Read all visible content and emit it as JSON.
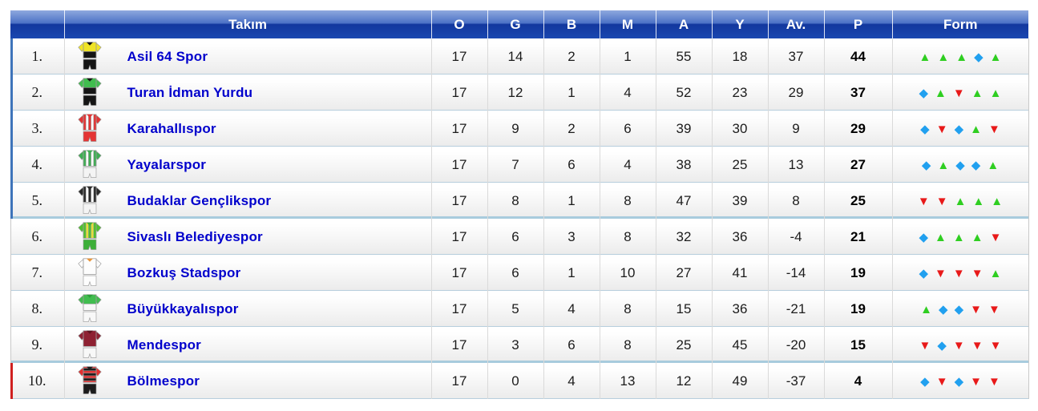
{
  "table": {
    "columns": [
      {
        "key": "rank",
        "label": ""
      },
      {
        "key": "team",
        "label": "Takım"
      },
      {
        "key": "o",
        "label": "O"
      },
      {
        "key": "g",
        "label": "G"
      },
      {
        "key": "b",
        "label": "B"
      },
      {
        "key": "m",
        "label": "M"
      },
      {
        "key": "a",
        "label": "A"
      },
      {
        "key": "y",
        "label": "Y"
      },
      {
        "key": "av",
        "label": "Av."
      },
      {
        "key": "p",
        "label": "P"
      },
      {
        "key": "form",
        "label": "Form"
      }
    ],
    "rows": [
      {
        "rank": "1.",
        "team": "Asil 64 Spor",
        "o": 17,
        "g": 14,
        "b": 2,
        "m": 1,
        "a": 55,
        "y": 18,
        "av": 37,
        "p": 44,
        "form": [
          "W",
          "W",
          "W",
          "D",
          "W"
        ],
        "zone": "promotion",
        "separator": "normal",
        "jersey": {
          "icon_name": "team-jersey-icon",
          "pattern": "half",
          "c1": "#f0e427",
          "c2": "#151515",
          "shorts": "#151515",
          "collar": "#151515"
        }
      },
      {
        "rank": "2.",
        "team": "Turan İdman Yurdu",
        "o": 17,
        "g": 12,
        "b": 1,
        "m": 4,
        "a": 52,
        "y": 23,
        "av": 29,
        "p": 37,
        "form": [
          "D",
          "W",
          "L",
          "W",
          "W"
        ],
        "zone": "promotion",
        "separator": "normal",
        "jersey": {
          "icon_name": "team-jersey-icon",
          "pattern": "half",
          "c1": "#41bd4f",
          "c2": "#151515",
          "shorts": "#151515",
          "collar": "#151515"
        }
      },
      {
        "rank": "3.",
        "team": "Karahallıspor",
        "o": 17,
        "g": 9,
        "b": 2,
        "m": 6,
        "a": 39,
        "y": 30,
        "av": 9,
        "p": 29,
        "form": [
          "D",
          "L",
          "D",
          "W",
          "L"
        ],
        "zone": "promotion",
        "separator": "normal",
        "jersey": {
          "icon_name": "team-jersey-icon",
          "pattern": "stripes",
          "c1": "#e43434",
          "c2": "#ffffff",
          "shorts": "#e43434",
          "collar": "#e43434"
        }
      },
      {
        "rank": "4.",
        "team": "Yayalarspor",
        "o": 17,
        "g": 7,
        "b": 6,
        "m": 4,
        "a": 38,
        "y": 25,
        "av": 13,
        "p": 27,
        "form": [
          "D",
          "W",
          "D",
          "D",
          "W"
        ],
        "zone": "promotion",
        "separator": "normal",
        "jersey": {
          "icon_name": "team-jersey-icon",
          "pattern": "stripes",
          "c1": "#3fae53",
          "c2": "#ffffff",
          "shorts": "#f4f4f4",
          "collar": "#3fae53"
        }
      },
      {
        "rank": "5.",
        "team": "Budaklar Gençlikspor",
        "o": 17,
        "g": 8,
        "b": 1,
        "m": 8,
        "a": 47,
        "y": 39,
        "av": 8,
        "p": 25,
        "form": [
          "L",
          "L",
          "W",
          "W",
          "W"
        ],
        "zone": "promotion",
        "separator": "strong",
        "jersey": {
          "icon_name": "team-jersey-icon",
          "pattern": "stripes",
          "c1": "#2a2a2a",
          "c2": "#ffffff",
          "shorts": "#f4f4f4",
          "collar": "#2a2a2a"
        }
      },
      {
        "rank": "6.",
        "team": "Sivaslı Belediyespor",
        "o": 17,
        "g": 6,
        "b": 3,
        "m": 8,
        "a": 32,
        "y": 36,
        "av": -4,
        "p": 21,
        "form": [
          "D",
          "W",
          "W",
          "W",
          "L"
        ],
        "zone": null,
        "separator": "normal",
        "jersey": {
          "icon_name": "team-jersey-icon",
          "pattern": "stripes",
          "c1": "#4fc12e",
          "c2": "#e6e03a",
          "shorts": "#3daf38",
          "collar": "#3daf38"
        }
      },
      {
        "rank": "7.",
        "team": "Bozkuş Stadspor",
        "o": 17,
        "g": 6,
        "b": 1,
        "m": 10,
        "a": 27,
        "y": 41,
        "av": -14,
        "p": 19,
        "form": [
          "D",
          "L",
          "L",
          "L",
          "W"
        ],
        "zone": null,
        "separator": "normal",
        "jersey": {
          "icon_name": "team-jersey-icon",
          "pattern": "solid",
          "c1": "#fdfdfd",
          "c2": "#fdfdfd",
          "shorts": "#fdfdfd",
          "collar": "#e8953a"
        }
      },
      {
        "rank": "8.",
        "team": "Büyükkayalıspor",
        "o": 17,
        "g": 5,
        "b": 4,
        "m": 8,
        "a": 15,
        "y": 36,
        "av": -21,
        "p": 19,
        "form": [
          "W",
          "D",
          "D",
          "L",
          "L"
        ],
        "zone": null,
        "separator": "normal",
        "jersey": {
          "icon_name": "team-jersey-icon",
          "pattern": "half",
          "c1": "#41bd4f",
          "c2": "#f8f8f8",
          "shorts": "#f8f8f8",
          "collar": "#2e9e3c"
        }
      },
      {
        "rank": "9.",
        "team": "Mendespor",
        "o": 17,
        "g": 3,
        "b": 6,
        "m": 8,
        "a": 25,
        "y": 45,
        "av": -20,
        "p": 15,
        "form": [
          "L",
          "D",
          "L",
          "L",
          "L"
        ],
        "zone": null,
        "separator": "strong",
        "jersey": {
          "icon_name": "team-jersey-icon",
          "pattern": "solid",
          "c1": "#8e2132",
          "c2": "#8e2132",
          "shorts": "#f8f8f8",
          "collar": "#5e1520"
        }
      },
      {
        "rank": "10.",
        "team": "Bölmespor",
        "o": 17,
        "g": 0,
        "b": 4,
        "m": 13,
        "a": 12,
        "y": 49,
        "av": -37,
        "p": 4,
        "form": [
          "D",
          "L",
          "D",
          "L",
          "L"
        ],
        "zone": "relegation",
        "separator": "normal",
        "jersey": {
          "icon_name": "team-jersey-icon",
          "pattern": "hoops",
          "c1": "#e23131",
          "c2": "#1c1c1c",
          "shorts": "#1c1c1c",
          "collar": "#1c1c1c"
        }
      }
    ],
    "form_legend": {
      "W": {
        "glyph": "▲",
        "color": "#2fce21",
        "icon_name": "form-win-icon"
      },
      "D": {
        "glyph": "◆",
        "color": "#21a0ef",
        "icon_name": "form-draw-icon"
      },
      "L": {
        "glyph": "▼",
        "color": "#e81919",
        "icon_name": "form-loss-icon"
      }
    },
    "colors": {
      "header_top": "#4c72c6",
      "header_bottom": "#1a47b0",
      "team_link": "#0000cc",
      "promotion_border": "#3e74ba",
      "relegation_border": "#cf2020",
      "row_separator": "#b7cedd",
      "strong_separator": "#a8cbdd"
    }
  }
}
